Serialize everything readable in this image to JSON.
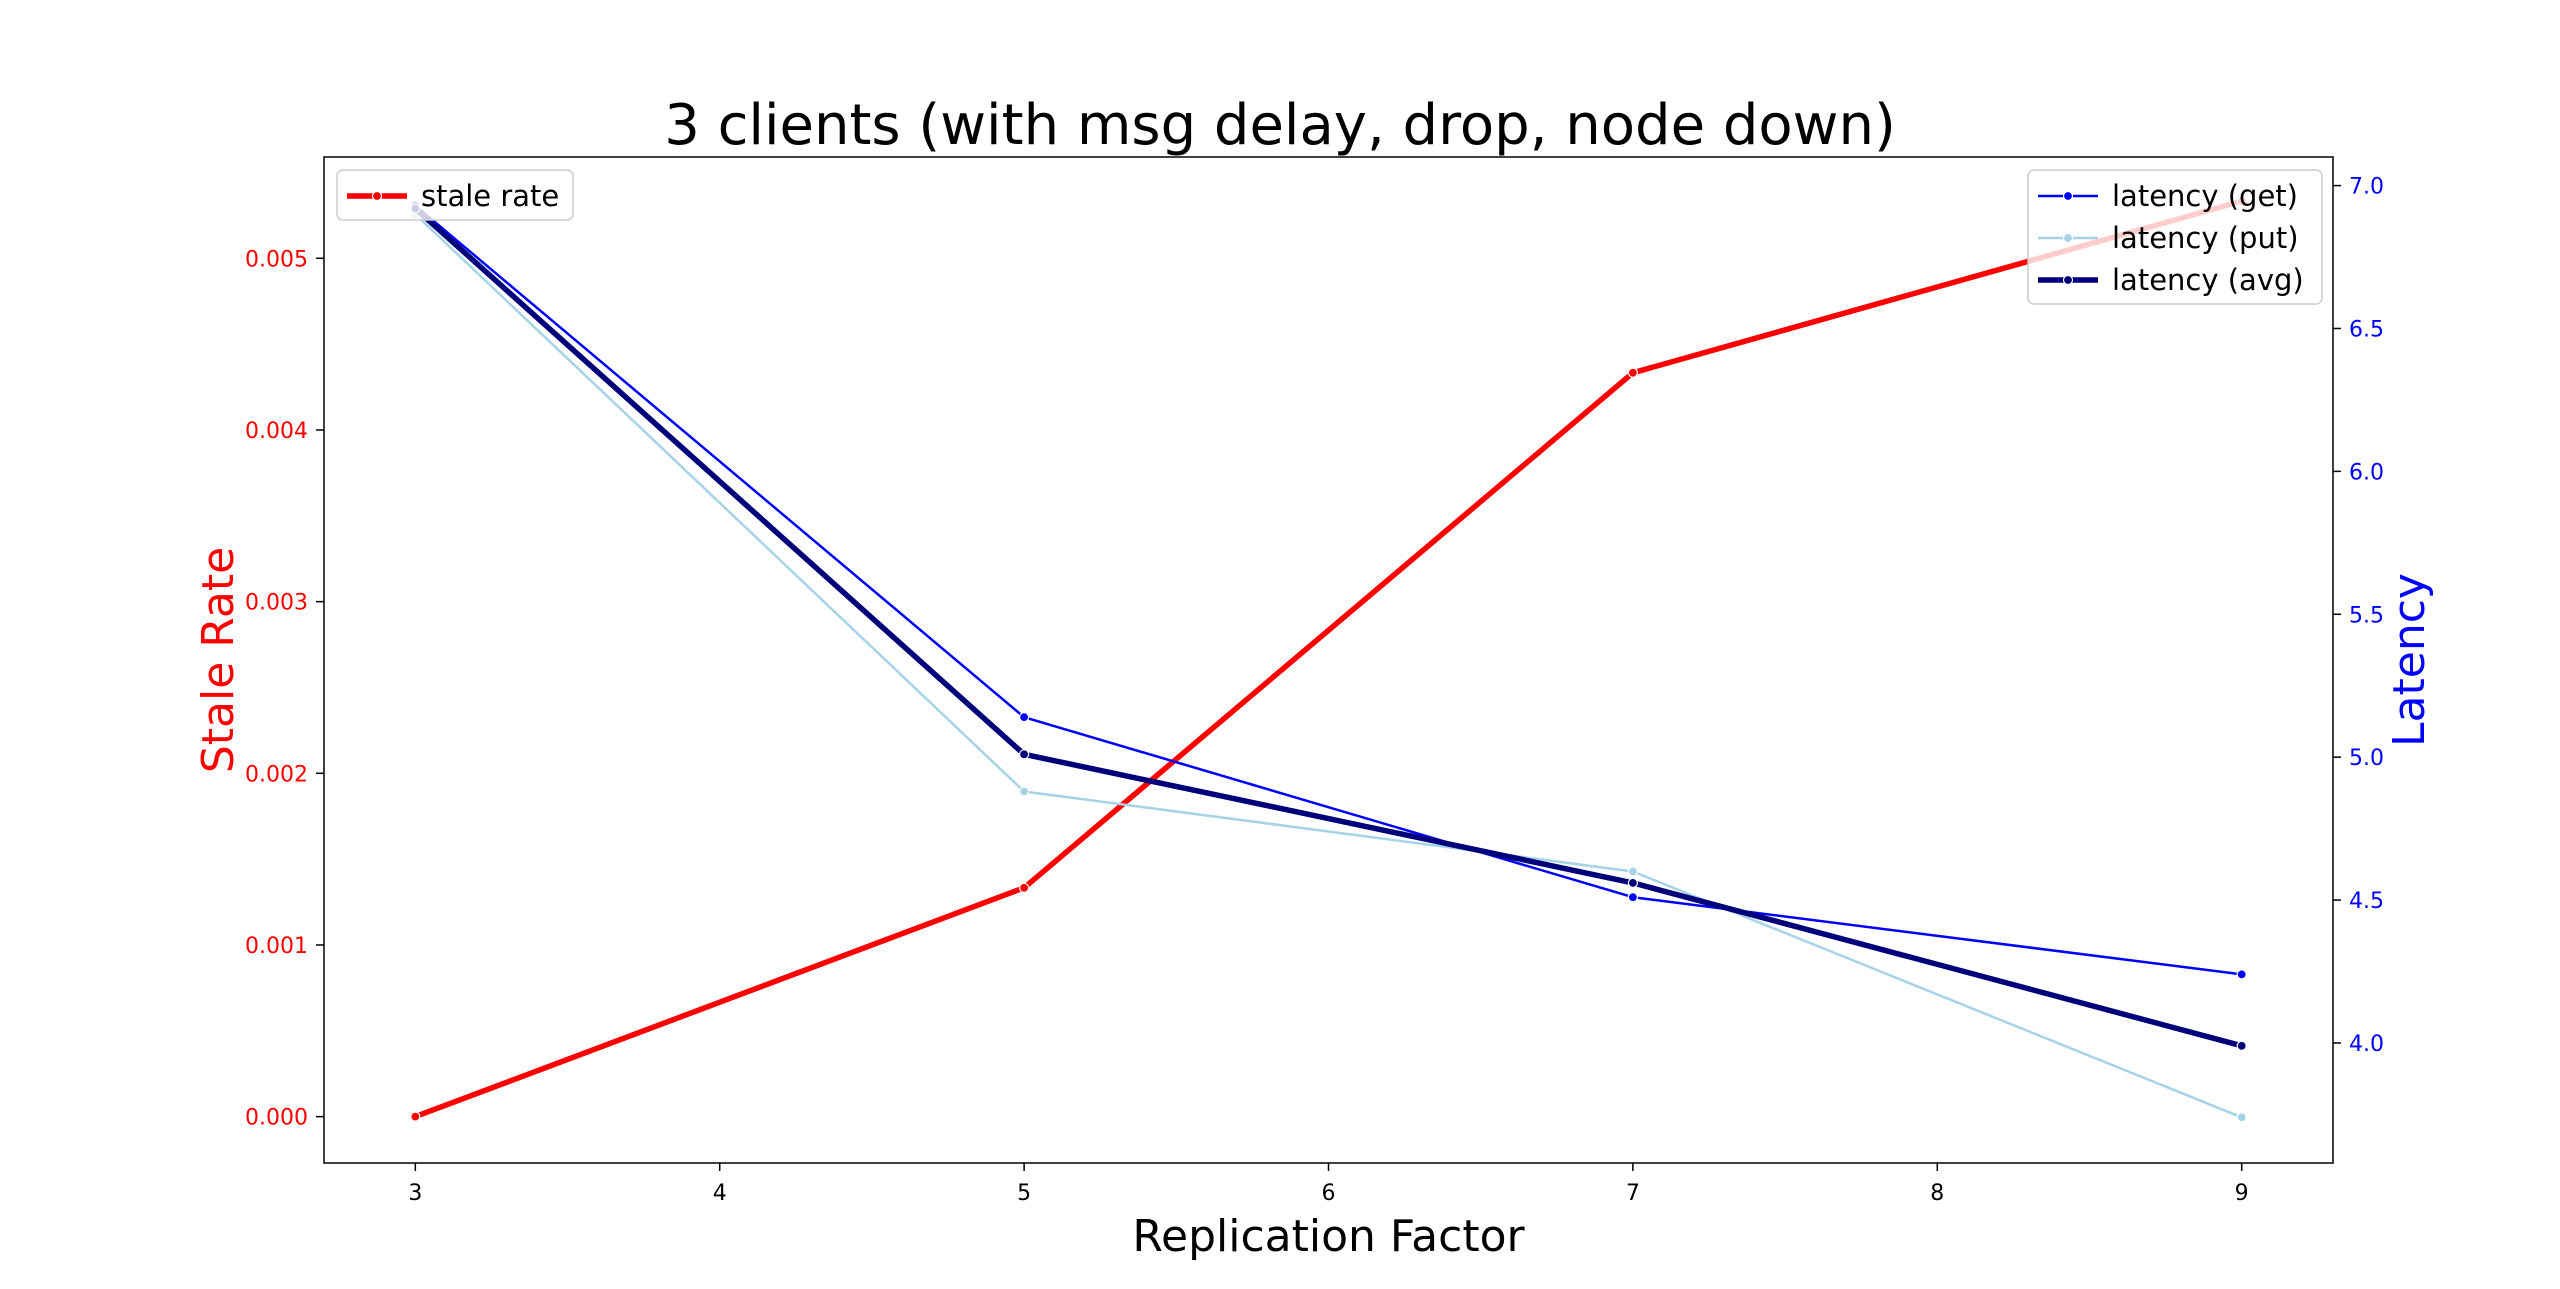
{
  "chart_data": {
    "type": "line",
    "title": "3 clients (with msg delay, drop, node down)",
    "xlabel": "Replication Factor",
    "x_ticks": [
      "3",
      "4",
      "5",
      "6",
      "7",
      "8",
      "9"
    ],
    "x": [
      3,
      5,
      7,
      9
    ],
    "xlim": [
      2.7,
      9.3
    ],
    "grid": false,
    "left_axis": {
      "label": "Stale Rate",
      "color": "#ff0000",
      "ylim": [
        -0.00027,
        0.00559
      ],
      "ticks": [
        0.0,
        0.001,
        0.002,
        0.003,
        0.004,
        0.005
      ],
      "tick_labels": [
        "0.000",
        "0.001",
        "0.002",
        "0.003",
        "0.004",
        "0.005"
      ],
      "legend_placement": "upper-left",
      "series": [
        {
          "name": "stale rate",
          "color": "#ff0000",
          "width": "thick",
          "values": [
            0.0,
            0.001333,
            0.004333,
            0.005333
          ]
        }
      ]
    },
    "right_axis": {
      "label": "Latency",
      "color": "#0000ff",
      "ylim": [
        3.58,
        7.1
      ],
      "ticks": [
        4.0,
        4.5,
        5.0,
        5.5,
        6.0,
        6.5,
        7.0
      ],
      "tick_labels": [
        "4.0",
        "4.5",
        "5.0",
        "5.5",
        "6.0",
        "6.5",
        "7.0"
      ],
      "legend_placement": "upper-right",
      "series": [
        {
          "name": "latency (get)",
          "color": "#0000ff",
          "width": "thin",
          "values": [
            6.93,
            5.14,
            4.51,
            4.24
          ]
        },
        {
          "name": "latency (put)",
          "color": "#a6d3e6",
          "width": "thin",
          "values": [
            6.9,
            4.88,
            4.6,
            3.74
          ]
        },
        {
          "name": "latency (avg)",
          "color": "#00007a",
          "width": "thick",
          "values": [
            6.92,
            5.01,
            4.56,
            3.99
          ]
        }
      ]
    }
  }
}
